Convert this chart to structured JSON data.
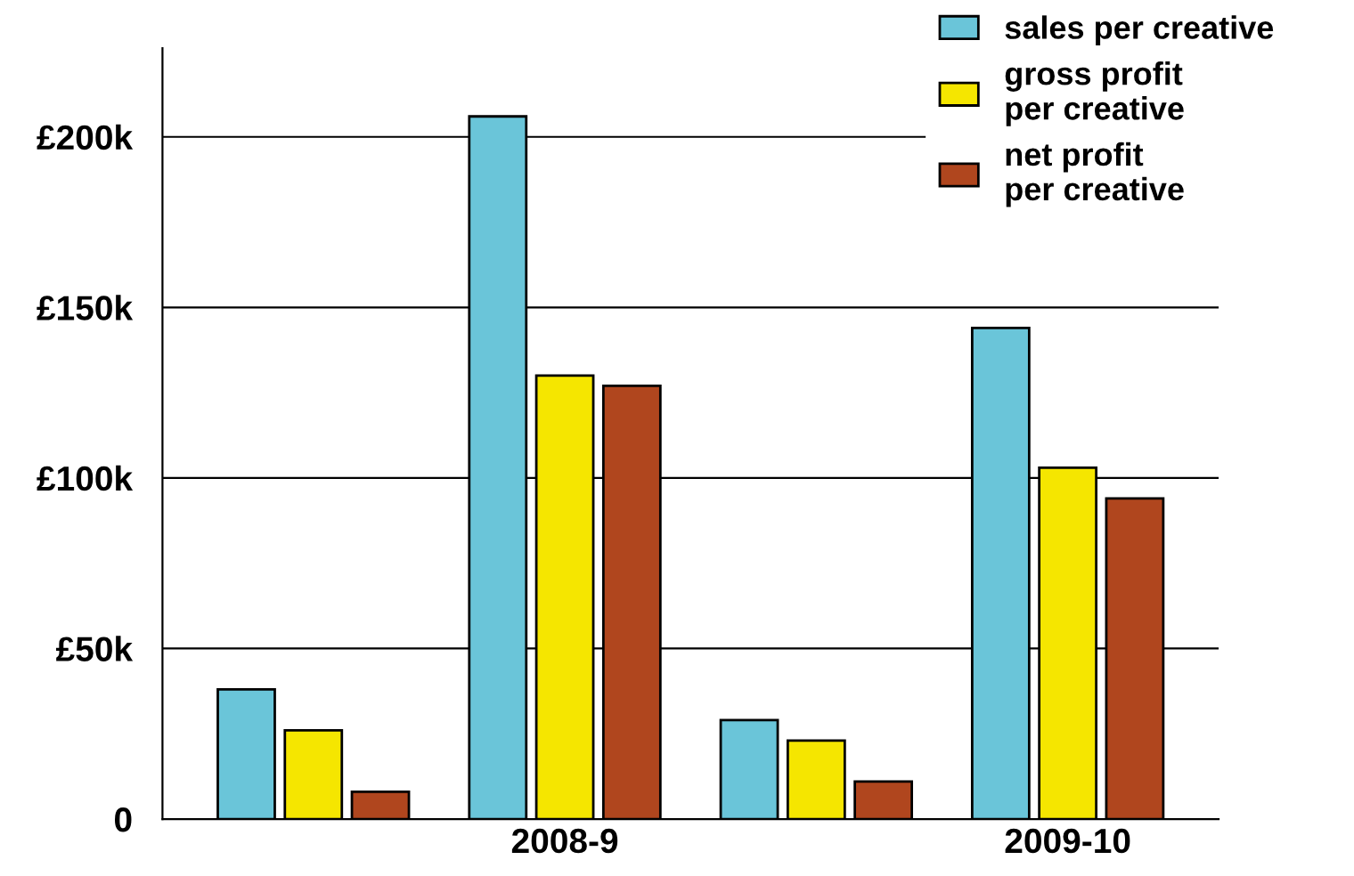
{
  "chart_data": {
    "type": "bar",
    "categories": [
      null,
      "2008-9",
      null,
      "2009-10"
    ],
    "series": [
      {
        "name": "sales per creative",
        "color": "#6ac5d9",
        "values": [
          38,
          206,
          29,
          144
        ]
      },
      {
        "name": "gross profit\nper creative",
        "color": "#f5e600",
        "values": [
          26,
          130,
          23,
          103
        ]
      },
      {
        "name": "net profit\nper creative",
        "color": "#b0461e",
        "values": [
          8,
          127,
          11,
          94
        ]
      }
    ],
    "ylim": [
      0,
      226
    ],
    "yticks": [
      0,
      {
        "value": 50,
        "label": "£50k"
      },
      {
        "value": 100,
        "label": "£100k"
      },
      {
        "value": 150,
        "label": "£150k"
      },
      {
        "value": 200,
        "label": "£200k"
      }
    ],
    "grid": "y",
    "legend": "top right"
  }
}
